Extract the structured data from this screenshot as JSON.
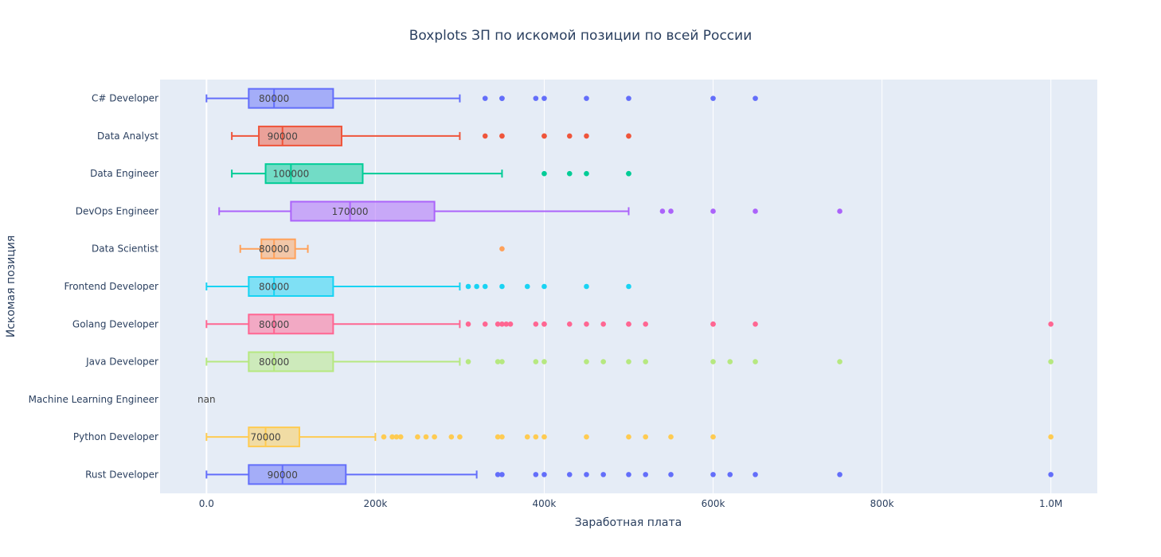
{
  "chart_data": {
    "type": "boxplot",
    "title": "Boxplots ЗП по искомой позиции по всей России",
    "xlabel": "Заработная плата",
    "ylabel": "Искомая позиция",
    "xlim": [
      -55000,
      1055000
    ],
    "x_ticks": [
      {
        "value": 0,
        "label": "0.0"
      },
      {
        "value": 200000,
        "label": "200k"
      },
      {
        "value": 400000,
        "label": "400k"
      },
      {
        "value": 600000,
        "label": "600k"
      },
      {
        "value": 800000,
        "label": "800k"
      },
      {
        "value": 1000000,
        "label": "1.0M"
      }
    ],
    "grid": true,
    "orientation": "horizontal",
    "series": [
      {
        "name": "C# Developer",
        "color": "#636efa",
        "min": 0,
        "q1": 50000,
        "median": 80000,
        "q3": 150000,
        "max": 300000,
        "median_label": "80000",
        "outliers": [
          330000,
          350000,
          350000,
          390000,
          400000,
          450000,
          500000,
          600000,
          650000
        ]
      },
      {
        "name": "Data Analyst",
        "color": "#ef553b",
        "min": 30000,
        "q1": 62000,
        "median": 90000,
        "q3": 160000,
        "max": 300000,
        "median_label": "90000",
        "outliers": [
          330000,
          350000,
          350000,
          400000,
          400000,
          430000,
          450000,
          500000,
          500000
        ]
      },
      {
        "name": "Data Engineer",
        "color": "#00cc96",
        "min": 30000,
        "q1": 70000,
        "median": 100000,
        "q3": 185000,
        "max": 350000,
        "median_label": "100000",
        "outliers": [
          400000,
          430000,
          450000,
          500000,
          500000
        ]
      },
      {
        "name": "DevOps Engineer",
        "color": "#ab63fa",
        "min": 15000,
        "q1": 100000,
        "median": 170000,
        "q3": 270000,
        "max": 500000,
        "median_label": "170000",
        "outliers": [
          540000,
          550000,
          600000,
          650000,
          750000
        ]
      },
      {
        "name": "Data Scientist",
        "color": "#ffa15a",
        "min": 40000,
        "q1": 65000,
        "median": 80000,
        "q3": 105000,
        "max": 120000,
        "median_label": "80000",
        "outliers": [
          350000
        ]
      },
      {
        "name": "Frontend Developer",
        "color": "#19d3f3",
        "min": 0,
        "q1": 50000,
        "median": 80000,
        "q3": 150000,
        "max": 300000,
        "median_label": "80000",
        "outliers": [
          310000,
          320000,
          330000,
          350000,
          380000,
          400000,
          450000,
          500000
        ]
      },
      {
        "name": "Golang Developer",
        "color": "#ff6692",
        "min": 0,
        "q1": 50000,
        "median": 80000,
        "q3": 150000,
        "max": 300000,
        "median_label": "80000",
        "outliers": [
          310000,
          330000,
          345000,
          350000,
          355000,
          360000,
          390000,
          400000,
          400000,
          430000,
          450000,
          470000,
          500000,
          500000,
          520000,
          600000,
          600000,
          650000,
          1000000
        ]
      },
      {
        "name": "Java Developer",
        "color": "#b6e880",
        "min": 0,
        "q1": 50000,
        "median": 80000,
        "q3": 150000,
        "max": 300000,
        "median_label": "80000",
        "outliers": [
          310000,
          345000,
          350000,
          390000,
          400000,
          450000,
          470000,
          500000,
          520000,
          600000,
          620000,
          650000,
          750000,
          1000000
        ]
      },
      {
        "name": "Machine Learning Engineer",
        "color": "#ff97ff",
        "empty": true,
        "median_label": "nan"
      },
      {
        "name": "Python Developer",
        "color": "#fecb52",
        "min": 0,
        "q1": 50000,
        "median": 70000,
        "q3": 110000,
        "max": 200000,
        "median_label": "70000",
        "outliers": [
          210000,
          220000,
          225000,
          230000,
          250000,
          260000,
          270000,
          290000,
          300000,
          345000,
          350000,
          380000,
          390000,
          400000,
          450000,
          500000,
          520000,
          550000,
          600000,
          1000000
        ]
      },
      {
        "name": "Rust Developer",
        "color": "#636efa",
        "min": 0,
        "q1": 50000,
        "median": 90000,
        "q3": 165000,
        "max": 320000,
        "median_label": "90000",
        "outliers": [
          345000,
          350000,
          390000,
          400000,
          430000,
          450000,
          470000,
          500000,
          520000,
          550000,
          600000,
          620000,
          650000,
          750000,
          1000000
        ]
      }
    ]
  }
}
